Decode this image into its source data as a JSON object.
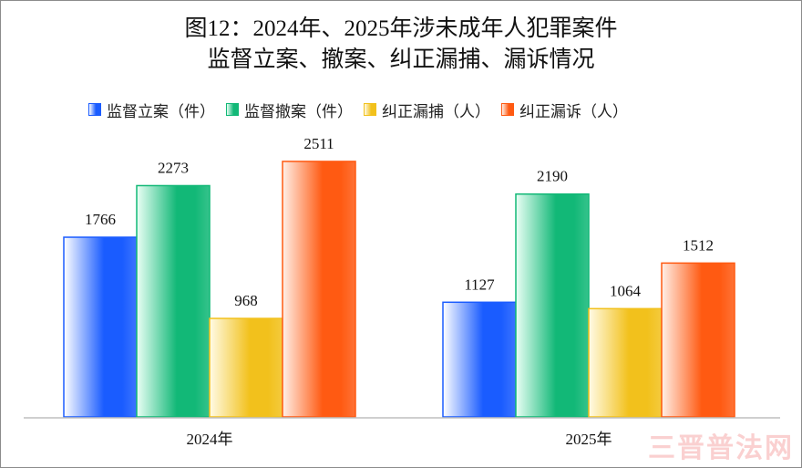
{
  "chart_data": {
    "type": "bar",
    "title_line1": "图12：2024年、2025年涉未成年人犯罪案件",
    "title_line2": "监督立案、撤案、纠正漏捕、漏诉情况",
    "categories": [
      "2024年",
      "2025年"
    ],
    "series": [
      {
        "name": "监督立案（件）",
        "values": [
          1766,
          1127
        ],
        "color": "#1a5cff",
        "light": "#ffffff"
      },
      {
        "name": "监督撤案（件）",
        "values": [
          2273,
          2190
        ],
        "color": "#12b877",
        "light": "#eafff5"
      },
      {
        "name": "纠正漏捕（人）",
        "values": [
          968,
          1064
        ],
        "color": "#f2c11c",
        "light": "#fffbe6"
      },
      {
        "name": "纠正漏诉（人）",
        "values": [
          2511,
          1512
        ],
        "color": "#ff5a12",
        "light": "#fff0e8"
      }
    ],
    "ylim": [
      0,
      2600
    ],
    "legend": "top",
    "grid": false
  },
  "watermark": "三晋普法网"
}
